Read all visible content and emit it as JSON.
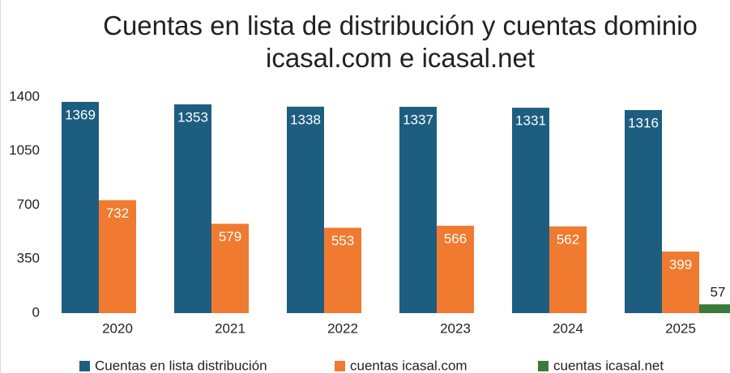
{
  "chart_data": {
    "type": "bar",
    "title": "Cuentas en lista de distribución y cuentas dominio icasal.com e icasal.net",
    "categories": [
      "2020",
      "2021",
      "2022",
      "2023",
      "2024",
      "2025"
    ],
    "series": [
      {
        "name": "Cuentas en lista distribución",
        "color": "#1d5e80",
        "values": [
          1369,
          1353,
          1338,
          1337,
          1331,
          1316
        ]
      },
      {
        "name": "cuentas icasal.com",
        "color": "#f07a30",
        "values": [
          732,
          579,
          553,
          566,
          562,
          399
        ]
      },
      {
        "name": "cuentas icasal.net",
        "color": "#3b7a3a",
        "values": [
          null,
          null,
          null,
          null,
          null,
          57
        ]
      }
    ],
    "ylim": [
      0,
      1400
    ],
    "yticks": [
      0,
      350,
      700,
      1050,
      1400
    ],
    "grid": false,
    "legend": "bottom"
  }
}
